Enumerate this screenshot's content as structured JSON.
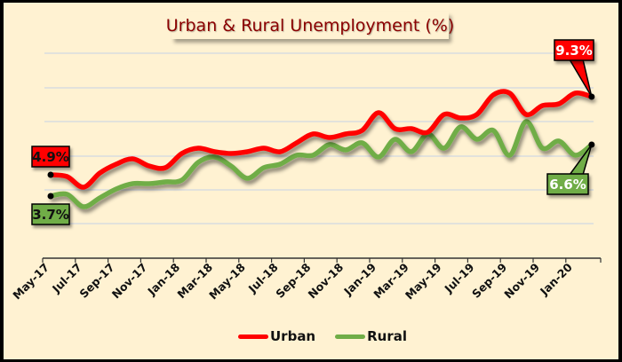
{
  "chart_data": {
    "type": "line",
    "title": "Urban & Rural Unemployment (%)",
    "xlabel": "",
    "ylabel": "",
    "ylim": [
      0,
      12
    ],
    "grid": true,
    "legend_position": "bottom",
    "x": [
      "May-17",
      "Jun-17",
      "Jul-17",
      "Aug-17",
      "Sep-17",
      "Oct-17",
      "Nov-17",
      "Dec-17",
      "Jan-18",
      "Feb-18",
      "Mar-18",
      "Apr-18",
      "May-18",
      "Jun-18",
      "Jul-18",
      "Aug-18",
      "Sep-18",
      "Oct-18",
      "Nov-18",
      "Dec-18",
      "Jan-19",
      "Feb-19",
      "Mar-19",
      "Apr-19",
      "May-19",
      "Jun-19",
      "Jul-19",
      "Aug-19",
      "Sep-19",
      "Oct-19",
      "Nov-19",
      "Dec-19",
      "Jan-20",
      "Feb-20"
    ],
    "tick_labels": [
      "May-17",
      "Jul-17",
      "Sep-17",
      "Nov-17",
      "Jan-18",
      "Mar-18",
      "May-18",
      "Jul-18",
      "Sep-18",
      "Nov-18",
      "Jan-19",
      "Mar-19",
      "May-19",
      "Jul-19",
      "Sep-19",
      "Nov-19",
      "Jan-20"
    ],
    "series": [
      {
        "name": "Urban",
        "color": "#FF0000",
        "values": [
          4.9,
          4.8,
          4.2,
          5.0,
          5.5,
          5.8,
          5.4,
          5.3,
          6.1,
          6.4,
          6.2,
          6.1,
          6.2,
          6.4,
          6.2,
          6.7,
          7.2,
          7.0,
          7.2,
          7.4,
          8.4,
          7.5,
          7.5,
          7.3,
          8.3,
          8.1,
          8.3,
          9.4,
          9.5,
          8.3,
          8.8,
          8.9,
          9.5,
          9.3
        ]
      },
      {
        "name": "Rural",
        "color": "#70AD47",
        "values": [
          3.7,
          3.8,
          3.1,
          3.6,
          4.1,
          4.4,
          4.4,
          4.5,
          4.6,
          5.6,
          5.9,
          5.4,
          4.7,
          5.3,
          5.5,
          6.0,
          6.0,
          6.6,
          6.3,
          6.7,
          5.9,
          6.9,
          6.2,
          7.2,
          6.4,
          7.6,
          6.9,
          7.4,
          6.0,
          7.9,
          6.4,
          6.8,
          6.0,
          6.6
        ]
      }
    ],
    "annotations": [
      {
        "series": "Urban",
        "point": "start",
        "label": "4.9%"
      },
      {
        "series": "Rural",
        "point": "start",
        "label": "3.7%"
      },
      {
        "series": "Urban",
        "point": "end",
        "label": "9.3%"
      },
      {
        "series": "Rural",
        "point": "end",
        "label": "6.6%"
      }
    ]
  },
  "title": "Urban & Rural Unemployment (%)",
  "legend": {
    "urban": "Urban",
    "rural": "Rural"
  },
  "callouts": {
    "urban_start": "4.9%",
    "rural_start": "3.7%",
    "urban_end": "9.3%",
    "rural_end": "6.6%"
  },
  "colors": {
    "urban": "#FF0000",
    "rural": "#70AD47",
    "background": "#FFF2D2",
    "title": "#8B0000",
    "grid": "#D9DCE0"
  }
}
